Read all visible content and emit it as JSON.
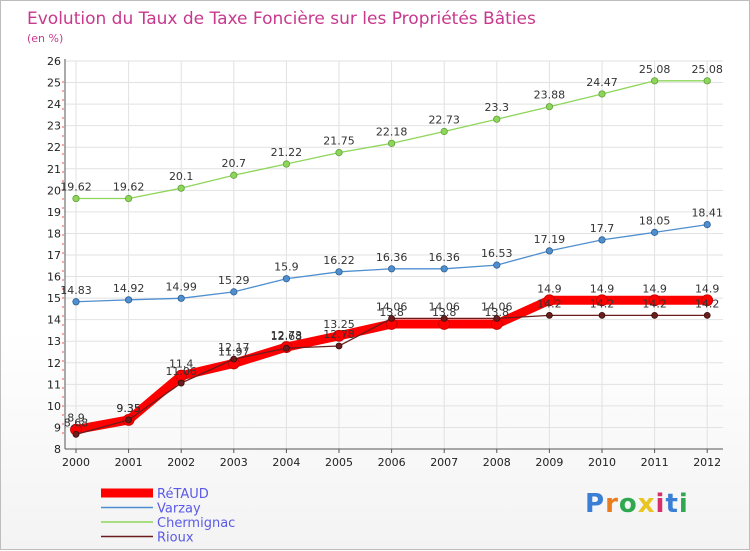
{
  "chart_data": {
    "type": "line",
    "title": "Evolution du Taux de Taxe Foncière sur les Propriétés Bâties",
    "subtitle": "(en %)",
    "x": [
      "2000",
      "2001",
      "2002",
      "2003",
      "2004",
      "2005",
      "2006",
      "2007",
      "2008",
      "2009",
      "2010",
      "2011",
      "2012"
    ],
    "ylim": [
      8,
      26
    ],
    "yticks": [
      "8",
      "9",
      "10",
      "11",
      "12",
      "13",
      "14",
      "15",
      "16",
      "17",
      "18",
      "19",
      "20",
      "21",
      "22",
      "23",
      "24",
      "25",
      "26"
    ],
    "grid": true,
    "legend_position": "bottom-left",
    "series": [
      {
        "name": "RéTAUD",
        "color": "#ff0000",
        "values": [
          8.9,
          9.35,
          11.4,
          11.97,
          12.73,
          13.25,
          13.8,
          13.8,
          13.8,
          14.9,
          14.9,
          14.9,
          14.9
        ],
        "labels": [
          "8.9",
          "9.35",
          "11.4",
          "11.97",
          "12.73",
          "13.25",
          "13.8",
          "13.8",
          "13.8",
          "14.9",
          "14.9",
          "14.9",
          "14.9"
        ]
      },
      {
        "name": "Varzay",
        "color": "#4f8fcf",
        "values": [
          14.83,
          14.92,
          14.99,
          15.29,
          15.9,
          16.22,
          16.36,
          16.36,
          16.53,
          17.19,
          17.7,
          18.05,
          18.41
        ],
        "labels": [
          "14.83",
          "14.92",
          "14.99",
          "15.29",
          "15.9",
          "16.22",
          "16.36",
          "16.36",
          "16.53",
          "17.19",
          "17.7",
          "18.05",
          "18.41"
        ]
      },
      {
        "name": "Chermignac",
        "color": "#8ed65a",
        "values": [
          19.62,
          19.62,
          20.1,
          20.7,
          21.22,
          21.75,
          22.18,
          22.73,
          23.3,
          23.88,
          24.47,
          25.08,
          25.08
        ],
        "labels": [
          "19.62",
          "19.62",
          "20.1",
          "20.7",
          "21.22",
          "21.75",
          "22.18",
          "22.73",
          "23.3",
          "23.88",
          "24.47",
          "25.08",
          "25.08"
        ]
      },
      {
        "name": "Rioux",
        "color": "#6b1d1d",
        "values": [
          8.68,
          9.35,
          11.06,
          12.17,
          12.68,
          12.78,
          14.06,
          14.06,
          14.06,
          14.2,
          14.2,
          14.2,
          14.2
        ],
        "labels": [
          "8.68",
          "9.35",
          "11.06",
          "12.17",
          "12.68",
          "12.78",
          "14.06",
          "14.06",
          "14.06",
          "14.2",
          "14.2",
          "14.2",
          "14.2"
        ]
      }
    ]
  },
  "logo": {
    "text": "Proxiti",
    "letter_colors": [
      "#3a7fd5",
      "#e87c1f",
      "#2fa84f",
      "#e8c51f",
      "#d6306b",
      "#3a7fd5",
      "#2fa84f"
    ]
  }
}
